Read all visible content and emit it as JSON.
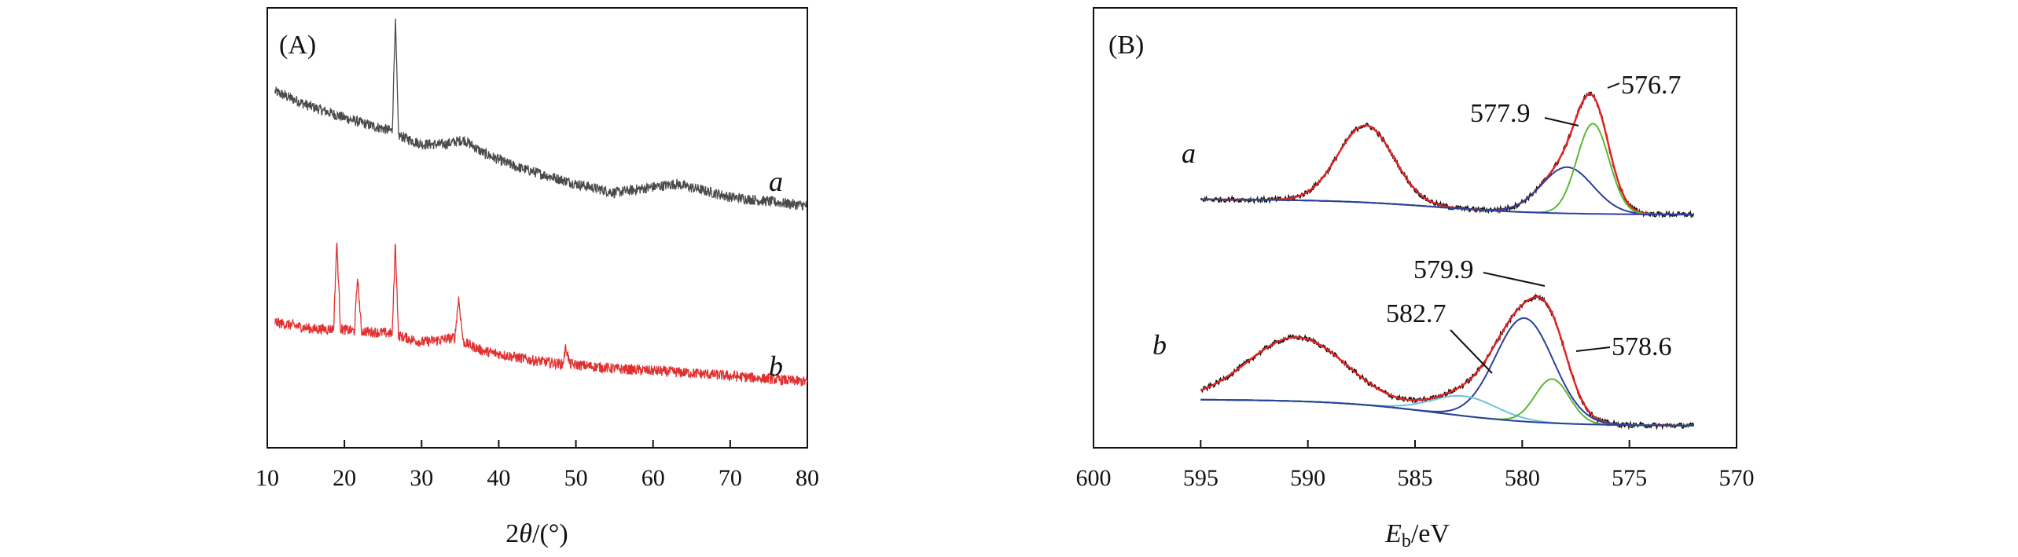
{
  "chart_data": [
    {
      "type": "line",
      "panel_label": "(A)",
      "xlabel": "2θ/(°)",
      "xlabel_parts": {
        "prefix": "2",
        "symbol": "θ",
        "suffix": "/(°)"
      },
      "ylabel": "",
      "xlim": [
        10,
        80
      ],
      "x_ticks": [
        10,
        20,
        30,
        40,
        50,
        60,
        70,
        80
      ],
      "x_tick_labels": [
        "10",
        "20",
        "30",
        "40",
        "50",
        "60",
        "70",
        "80"
      ],
      "series": [
        {
          "name": "a",
          "color": "#4a4a4a",
          "x": [
            11,
            15,
            20,
            24,
            26.2,
            26.6,
            27.0,
            30,
            33,
            35.5,
            38,
            42,
            50,
            55,
            63,
            70,
            80
          ],
          "y": [
            0.81,
            0.78,
            0.75,
            0.73,
            0.72,
            0.98,
            0.71,
            0.69,
            0.69,
            0.7,
            0.67,
            0.64,
            0.6,
            0.58,
            0.6,
            0.57,
            0.55
          ],
          "noise": 0.012
        },
        {
          "name": "b",
          "color": "#e03030",
          "x": [
            11,
            16,
            18.6,
            19.0,
            19.5,
            21.3,
            21.7,
            22.2,
            26.2,
            26.6,
            27.0,
            30,
            34.3,
            34.8,
            35.4,
            38,
            44,
            48.3,
            48.7,
            49.2,
            55,
            65,
            80
          ],
          "y": [
            0.285,
            0.27,
            0.27,
            0.47,
            0.27,
            0.265,
            0.39,
            0.265,
            0.26,
            0.47,
            0.255,
            0.24,
            0.25,
            0.34,
            0.24,
            0.22,
            0.2,
            0.19,
            0.23,
            0.19,
            0.18,
            0.17,
            0.15
          ],
          "noise": 0.012
        }
      ],
      "curve_labels": [
        "a",
        "b"
      ]
    },
    {
      "type": "line",
      "panel_label": "(B)",
      "xlabel": "Eb/eV",
      "xlabel_parts": {
        "symbol": "E",
        "subscript": "b",
        "suffix": "/eV"
      },
      "ylabel": "",
      "xlim": [
        600,
        570
      ],
      "x_ticks": [
        600,
        595,
        590,
        585,
        580,
        575,
        570
      ],
      "x_tick_labels": [
        "600",
        "595",
        "590",
        "585",
        "580",
        "575",
        "570"
      ],
      "groups": [
        {
          "name": "a",
          "baseline": 0.53,
          "components": [
            {
              "name": "envelope",
              "color": "#e62020",
              "centers": [
                587.3,
                577.9,
                576.7
              ],
              "amplitudes": [
                0.175,
                0.105,
                0.205
              ],
              "sigmas": [
                1.3,
                1.2,
                0.75
              ]
            },
            {
              "name": "577.9 peak",
              "color": "#2a3f9e",
              "centers": [
                577.9
              ],
              "amplitudes": [
                0.105
              ],
              "sigmas": [
                1.2
              ]
            },
            {
              "name": "576.7 peak",
              "color": "#5bb830",
              "centers": [
                576.7
              ],
              "amplitudes": [
                0.205
              ],
              "sigmas": [
                0.75
              ]
            },
            {
              "name": "background",
              "color": "#2a3f9e",
              "kind": "step"
            }
          ],
          "annotations": [
            "577.9",
            "576.7"
          ]
        },
        {
          "name": "b",
          "baseline": 0.05,
          "components": [
            {
              "name": "envelope",
              "color": "#e62020",
              "centers": [
                590.5,
                582.7,
                579.9,
                578.6
              ],
              "amplitudes": [
                0.145,
                0.045,
                0.235,
                0.1
              ],
              "sigmas": [
                2.3,
                1.5,
                1.35,
                0.8
              ]
            },
            {
              "name": "579.9 peak",
              "color": "#2a3f9e",
              "centers": [
                579.9
              ],
              "amplitudes": [
                0.235
              ],
              "sigmas": [
                1.35
              ]
            },
            {
              "name": "582.7 peak",
              "color": "#6cc3d5",
              "centers": [
                582.7
              ],
              "amplitudes": [
                0.045
              ],
              "sigmas": [
                1.5
              ]
            },
            {
              "name": "578.6 peak",
              "color": "#5bb830",
              "centers": [
                578.6
              ],
              "amplitudes": [
                0.1
              ],
              "sigmas": [
                0.8
              ]
            },
            {
              "name": "background",
              "color": "#2a3f9e",
              "kind": "step"
            }
          ],
          "annotations": [
            "579.9",
            "582.7",
            "578.6"
          ]
        }
      ],
      "curve_labels": [
        "a",
        "b"
      ]
    }
  ]
}
